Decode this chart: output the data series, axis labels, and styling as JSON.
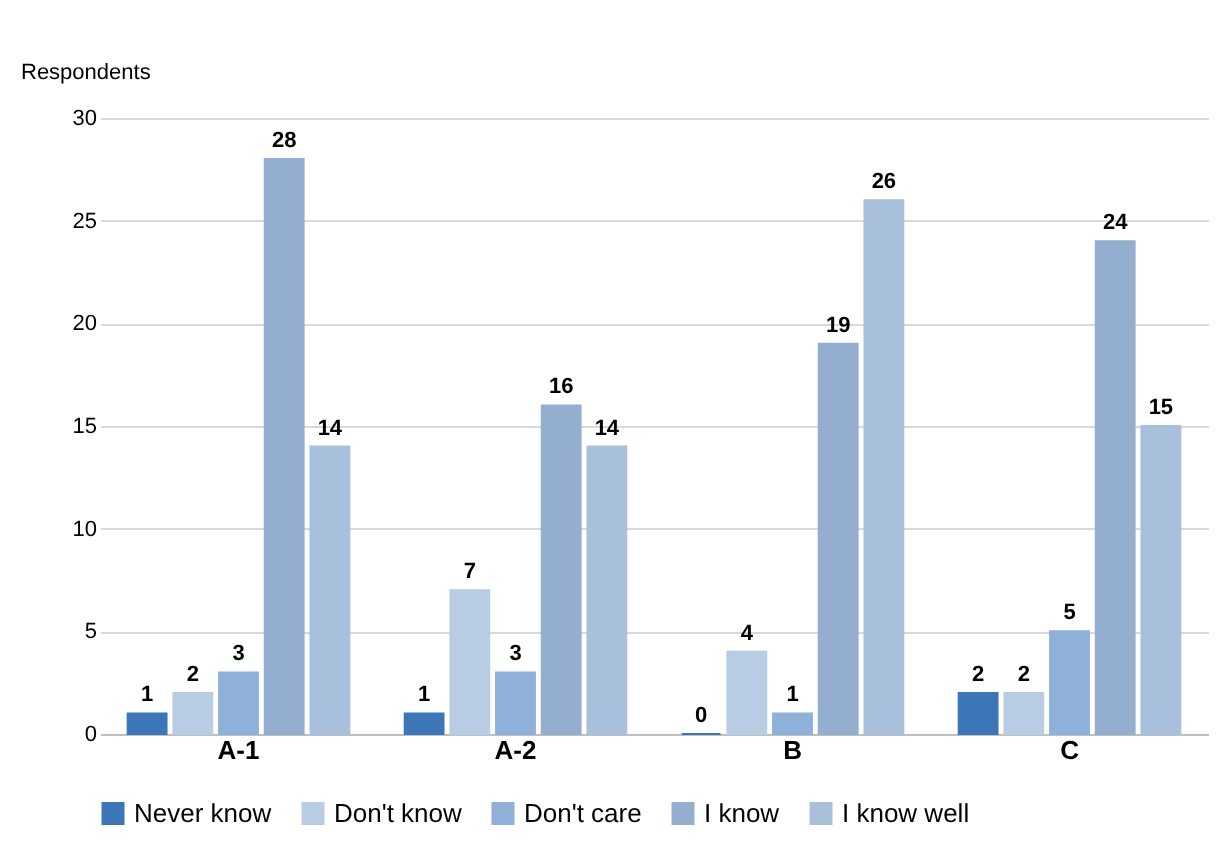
{
  "chart_data": {
    "type": "bar",
    "ylabel": "Respondents",
    "categories": [
      "A-1",
      "A-2",
      "B",
      "C"
    ],
    "series": [
      {
        "name": "Never know",
        "color": "#3d76b8",
        "values": [
          1,
          1,
          0,
          2
        ]
      },
      {
        "name": "Don't know",
        "color": "#b8cce4",
        "values": [
          2,
          7,
          4,
          2
        ]
      },
      {
        "name": "Don't care",
        "color": "#8fb0d8",
        "values": [
          3,
          3,
          1,
          5
        ]
      },
      {
        "name": "I know",
        "color": "#94aed0",
        "values": [
          28,
          16,
          19,
          24
        ]
      },
      {
        "name": "I know well",
        "color": "#a9c0dc",
        "values": [
          14,
          14,
          26,
          15
        ]
      }
    ],
    "ylim": [
      0,
      30
    ],
    "yticks": [
      0,
      5,
      10,
      15,
      20,
      25,
      30
    ],
    "grid": "y",
    "legend": "bottom",
    "data_labels": true
  }
}
